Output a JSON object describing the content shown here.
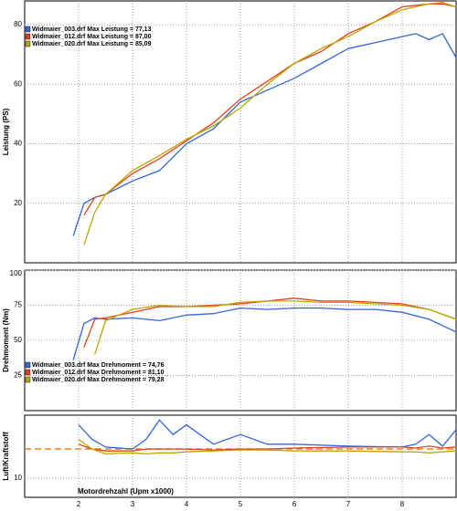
{
  "chart_data": [
    {
      "type": "line",
      "ylabel": "Leistung (PS)",
      "legend": "upper left",
      "grid": true,
      "xlim": [
        1,
        9
      ],
      "xticks": [
        2,
        3,
        4,
        5,
        6,
        7,
        8
      ],
      "ylim": [
        0,
        88
      ],
      "yticks": [
        20,
        40,
        60,
        80
      ],
      "x": [
        1.9,
        2.1,
        2.3,
        2.5,
        3,
        3.5,
        4,
        4.5,
        5,
        5.5,
        6,
        6.5,
        7,
        7.5,
        8,
        8.25,
        8.5,
        8.75,
        9
      ],
      "series": [
        {
          "name": "Widmaier_003.drf Max Leistung = 77,13",
          "color": "#3366d6",
          "values": [
            9,
            20,
            22,
            23,
            27.5,
            31,
            40,
            45,
            54,
            58,
            62,
            67,
            72,
            74,
            76,
            77,
            75,
            77,
            69
          ]
        },
        {
          "name": "Widmaier_012.drf Max Leistung = 87,00",
          "color": "#e0401c",
          "values": [
            null,
            16,
            22,
            23,
            30,
            35,
            41,
            47,
            55,
            61,
            67,
            71,
            77,
            81,
            86,
            86.5,
            87,
            87,
            86
          ]
        },
        {
          "name": "Widmaier_020.drf Max Leistung = 85,09",
          "color": "#b8a800",
          "values": [
            null,
            6,
            17,
            23,
            31,
            36,
            41.5,
            46,
            52,
            60,
            67,
            72,
            76,
            81,
            85,
            86,
            87,
            87.5,
            86
          ]
        }
      ]
    },
    {
      "type": "line",
      "ylabel": "Drehmoment (Nm)",
      "legend": "lower left",
      "grid": true,
      "xlim": [
        1,
        9
      ],
      "xticks": [
        2,
        3,
        4,
        5,
        6,
        7,
        8
      ],
      "ylim": [
        0,
        100
      ],
      "yticks": [
        25,
        50,
        75,
        100
      ],
      "x": [
        1.9,
        2.1,
        2.3,
        2.5,
        3,
        3.5,
        4,
        4.5,
        5,
        5.5,
        6,
        6.5,
        7,
        7.5,
        8,
        8.5,
        9
      ],
      "series": [
        {
          "name": "Widmaier_003.drf Max Drehmoment = 74,76",
          "color": "#3366d6",
          "values": [
            36,
            62,
            66,
            65,
            66,
            64,
            68,
            69,
            73,
            72,
            73,
            73,
            72,
            72,
            70,
            65,
            56
          ]
        },
        {
          "name": "Widmaier_012.drf Max Drehmoment = 81,10",
          "color": "#e0401c",
          "values": [
            null,
            45,
            65,
            66,
            70,
            74,
            74,
            75,
            76,
            78,
            80,
            78,
            78,
            77,
            76,
            72,
            65
          ]
        },
        {
          "name": "Widmaier_020.drf Max Drehmoment = 79,28",
          "color": "#b8a800",
          "values": [
            null,
            null,
            40,
            64,
            72,
            75,
            74,
            74,
            77,
            78,
            78,
            77,
            77,
            76,
            75,
            72,
            65
          ]
        }
      ]
    },
    {
      "type": "line",
      "ylabel": "Luft/Kraftstoff",
      "xlabel": "Motordrehzahl (Upm x1000)",
      "grid": true,
      "xlim": [
        1,
        9
      ],
      "xticks": [
        2,
        3,
        4,
        5,
        6,
        7,
        8
      ],
      "ylim": [
        8,
        16.5
      ],
      "yticks": [
        10
      ],
      "reference": 13,
      "reference_color": "#f08020",
      "x": [
        2,
        2.25,
        2.5,
        3,
        3.25,
        3.5,
        3.75,
        4,
        4.5,
        5,
        5.5,
        6,
        7,
        8,
        8.25,
        8.5,
        8.75,
        9
      ],
      "series": [
        {
          "color": "#3366d6",
          "values": [
            15.5,
            14,
            13.2,
            13,
            14,
            16,
            14.5,
            15.5,
            13.5,
            14.5,
            13.5,
            13.5,
            13.3,
            13.2,
            13.5,
            14.5,
            13.3,
            15
          ]
        },
        {
          "color": "#e0401c",
          "values": [
            13.5,
            13,
            12.8,
            12.8,
            13,
            13,
            13,
            13,
            12.9,
            13,
            13,
            13.1,
            13.2,
            13.2,
            13.1,
            13.3,
            13.1,
            13.2
          ]
        },
        {
          "color": "#b8a800",
          "values": [
            14,
            13,
            12.5,
            12.6,
            12.5,
            12.6,
            12.6,
            12.7,
            12.8,
            12.9,
            12.9,
            12.8,
            12.8,
            12.7,
            12.7,
            12.6,
            12.7,
            12.8
          ]
        }
      ]
    }
  ]
}
